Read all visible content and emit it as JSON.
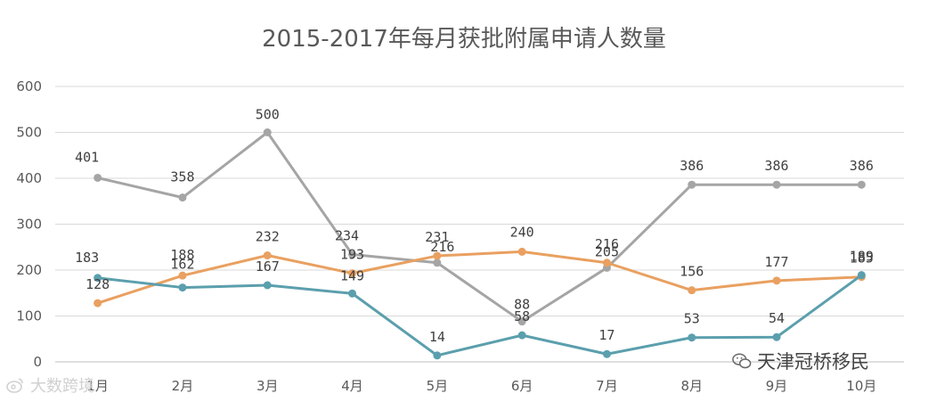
{
  "chart_data": {
    "type": "line",
    "title": "2015-2017年每月获批附属申请人数量",
    "categories": [
      "1月",
      "2月",
      "3月",
      "4月",
      "5月",
      "6月",
      "7月",
      "8月",
      "9月",
      "10月"
    ],
    "ylim": [
      0,
      600
    ],
    "yticks": [
      0,
      100,
      200,
      300,
      400,
      500,
      600
    ],
    "grid": true,
    "legend": "none",
    "series": [
      {
        "color": "#a5a5a5",
        "values": [
          401,
          358,
          500,
          234,
          216,
          88,
          205,
          386,
          386,
          386
        ]
      },
      {
        "color": "#e9a060",
        "values": [
          128,
          188,
          232,
          193,
          231,
          240,
          216,
          156,
          177,
          185
        ]
      },
      {
        "color": "#5b9fad",
        "values": [
          183,
          162,
          167,
          149,
          14,
          58,
          17,
          53,
          54,
          189
        ]
      }
    ]
  },
  "watermarks": {
    "left": "大数跨境",
    "right": "天津冠桥移民"
  },
  "icons": {
    "left": "weibo-icon",
    "right": "wechat-icon"
  }
}
